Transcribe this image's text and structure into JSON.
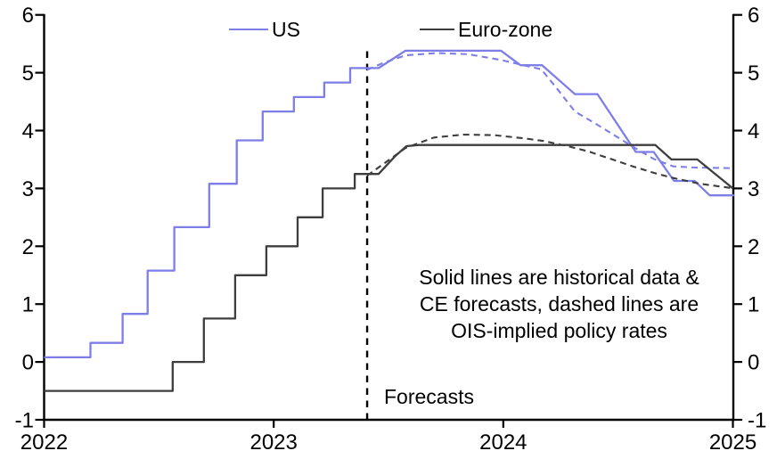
{
  "legend": {
    "us_label": "US",
    "euro_label": "Euro-zone"
  },
  "annotation": {
    "line1": "Solid lines are historical data &",
    "line2": "CE forecasts, dashed lines are",
    "line3": "OIS-implied policy rates"
  },
  "forecast_label": "Forecasts",
  "colors": {
    "us": "#7e7ee8",
    "euro": "#3e3e3e",
    "axis": "#000000"
  },
  "chart_data": {
    "type": "line",
    "title": "",
    "xlabel": "",
    "ylabel": "",
    "x_axis": {
      "range": [
        2022,
        2025.005
      ],
      "ticks": [
        2022,
        2023,
        2024,
        2025
      ],
      "tick_labels": [
        "2022",
        "2023",
        "2024",
        "2025"
      ]
    },
    "y_axis": {
      "range": [
        -1,
        6
      ],
      "ticks": [
        -1,
        0,
        1,
        2,
        3,
        4,
        5,
        6
      ],
      "tick_labels": [
        "-1",
        "0",
        "1",
        "2",
        "3",
        "4",
        "5",
        "6"
      ],
      "mirrored_right": true
    },
    "grid": false,
    "forecast_line": {
      "x": 2023.407,
      "y_from": -1,
      "y_to": 5.41
    },
    "series": [
      {
        "name": "US",
        "style": "solid",
        "color_key": "us",
        "points": [
          [
            2022.0,
            0.08
          ],
          [
            2022.202,
            0.08
          ],
          [
            2022.202,
            0.33
          ],
          [
            2022.342,
            0.33
          ],
          [
            2022.342,
            0.83
          ],
          [
            2022.451,
            0.83
          ],
          [
            2022.451,
            1.58
          ],
          [
            2022.567,
            1.58
          ],
          [
            2022.567,
            2.33
          ],
          [
            2022.719,
            2.33
          ],
          [
            2022.719,
            3.08
          ],
          [
            2022.839,
            3.08
          ],
          [
            2022.839,
            3.83
          ],
          [
            2022.952,
            3.83
          ],
          [
            2022.952,
            4.33
          ],
          [
            2023.088,
            4.33
          ],
          [
            2023.088,
            4.58
          ],
          [
            2023.22,
            4.58
          ],
          [
            2023.22,
            4.83
          ],
          [
            2023.333,
            4.83
          ],
          [
            2023.333,
            5.08
          ],
          [
            2023.457,
            5.08
          ],
          [
            2023.574,
            5.38
          ],
          [
            2023.99,
            5.38
          ],
          [
            2024.075,
            5.13
          ],
          [
            2024.169,
            5.13
          ],
          [
            2024.312,
            4.63
          ],
          [
            2024.41,
            4.63
          ],
          [
            2024.577,
            3.63
          ],
          [
            2024.655,
            3.63
          ],
          [
            2024.744,
            3.13
          ],
          [
            2024.833,
            3.13
          ],
          [
            2024.899,
            2.88
          ],
          [
            2025.005,
            2.88
          ]
        ]
      },
      {
        "name": "US OIS-implied",
        "style": "dashed",
        "color_key": "us",
        "points": [
          [
            2023.407,
            5.05
          ],
          [
            2023.477,
            5.17
          ],
          [
            2023.574,
            5.3
          ],
          [
            2023.71,
            5.34
          ],
          [
            2023.846,
            5.32
          ],
          [
            2023.99,
            5.22
          ],
          [
            2024.075,
            5.14
          ],
          [
            2024.165,
            5.06
          ],
          [
            2024.235,
            4.72
          ],
          [
            2024.312,
            4.33
          ],
          [
            2024.41,
            4.1
          ],
          [
            2024.565,
            3.72
          ],
          [
            2024.655,
            3.51
          ],
          [
            2024.74,
            3.38
          ],
          [
            2024.837,
            3.36
          ],
          [
            2025.005,
            3.35
          ]
        ]
      },
      {
        "name": "Euro-zone",
        "style": "solid",
        "color_key": "euro",
        "points": [
          [
            2022.0,
            -0.5
          ],
          [
            2022.56,
            -0.5
          ],
          [
            2022.56,
            0.0
          ],
          [
            2022.696,
            0.0
          ],
          [
            2022.696,
            0.75
          ],
          [
            2022.832,
            0.75
          ],
          [
            2022.832,
            1.5
          ],
          [
            2022.968,
            1.5
          ],
          [
            2022.968,
            2.0
          ],
          [
            2023.104,
            2.0
          ],
          [
            2023.104,
            2.5
          ],
          [
            2023.213,
            2.5
          ],
          [
            2023.213,
            3.0
          ],
          [
            2023.353,
            3.0
          ],
          [
            2023.353,
            3.25
          ],
          [
            2023.457,
            3.25
          ],
          [
            2023.527,
            3.55
          ],
          [
            2023.578,
            3.73
          ],
          [
            2023.632,
            3.75
          ],
          [
            2024.662,
            3.75
          ],
          [
            2024.732,
            3.5
          ],
          [
            2024.845,
            3.5
          ],
          [
            2025.0,
            3.0
          ]
        ]
      },
      {
        "name": "Euro-zone OIS-implied",
        "style": "dashed",
        "color_key": "euro",
        "points": [
          [
            2023.407,
            3.22
          ],
          [
            2023.477,
            3.42
          ],
          [
            2023.574,
            3.7
          ],
          [
            2023.698,
            3.88
          ],
          [
            2023.827,
            3.93
          ],
          [
            2023.963,
            3.92
          ],
          [
            2024.079,
            3.87
          ],
          [
            2024.177,
            3.82
          ],
          [
            2024.281,
            3.73
          ],
          [
            2024.371,
            3.64
          ],
          [
            2024.468,
            3.51
          ],
          [
            2024.565,
            3.38
          ],
          [
            2024.655,
            3.27
          ],
          [
            2024.74,
            3.18
          ],
          [
            2024.857,
            3.08
          ],
          [
            2025.005,
            3.0
          ]
        ]
      }
    ]
  }
}
